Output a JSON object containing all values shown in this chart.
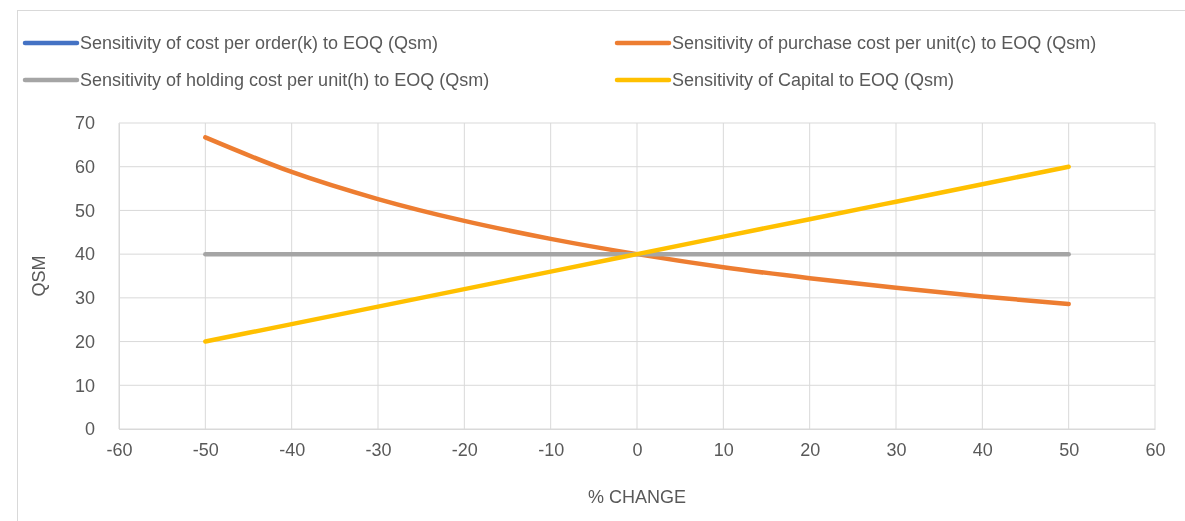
{
  "chart_data": {
    "type": "line",
    "xlabel": "% CHANGE",
    "ylabel": "QSM",
    "x": [
      -50,
      -40,
      -30,
      -20,
      -10,
      0,
      10,
      20,
      30,
      40,
      50
    ],
    "series": [
      {
        "name": "Sensitivity of cost per order(k) to EOQ (Qsm)",
        "color": "#4472c4",
        "values": [
          null,
          null,
          null,
          null,
          null,
          null,
          null,
          null,
          null,
          null,
          null
        ]
      },
      {
        "name": "Sensitivity of purchase cost per unit(c) to EOQ (Qsm)",
        "color": "#ed7d31",
        "values": [
          66.7,
          58.8,
          52.6,
          47.6,
          43.5,
          40,
          37.0,
          34.5,
          32.3,
          30.3,
          28.6
        ]
      },
      {
        "name": "Sensitivity of holding cost per unit(h) to EOQ (Qsm)",
        "color": "#a5a5a5",
        "values": [
          40,
          40,
          40,
          40,
          40,
          40,
          40,
          40,
          40,
          40,
          40
        ]
      },
      {
        "name": "Sensitivity of Capital to EOQ (Qsm)",
        "color": "#ffc000",
        "values": [
          20,
          24,
          28,
          32,
          36,
          40,
          44,
          48,
          52,
          56,
          60
        ]
      }
    ],
    "xlim": [
      -60,
      60
    ],
    "xticks": [
      -60,
      -50,
      -40,
      -30,
      -20,
      -10,
      0,
      10,
      20,
      30,
      40,
      50,
      60
    ],
    "ylim": [
      0,
      70
    ],
    "yticks": [
      0,
      10,
      20,
      30,
      40,
      50,
      60,
      70
    ],
    "grid": true,
    "legend": "top",
    "marker": "none",
    "line_style": "solid"
  }
}
